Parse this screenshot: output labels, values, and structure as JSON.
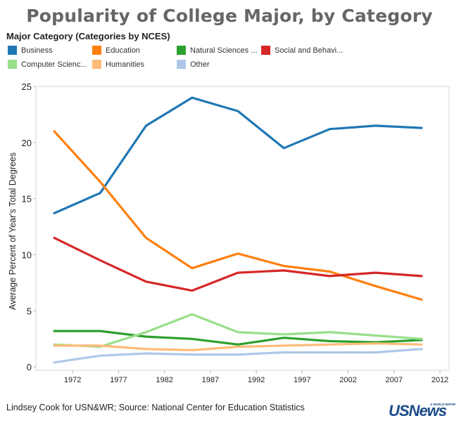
{
  "title": "Popularity of College Major, by Category",
  "legend": {
    "title": "Major Category (Categories by NCES)",
    "items": [
      {
        "label": "Business",
        "color": "#1f77b4"
      },
      {
        "label": "Education",
        "color": "#ff7f0e"
      },
      {
        "label": "Natural Sciences ...",
        "color": "#2ca02c"
      },
      {
        "label": "Social and Behavi...",
        "color": "#d62728"
      },
      {
        "label": "Computer Scienc...",
        "color": "#98df8a"
      },
      {
        "label": "Humanities",
        "color": "#ffbb78"
      },
      {
        "label": "Other",
        "color": "#aec7e8"
      }
    ]
  },
  "footer": "Lindsey Cook for USN&WR; Source: National Center for Education Statistics",
  "logo": {
    "text": "USNews",
    "subtext": "& WORLD REPORT",
    "color": "#1a4a8a"
  },
  "chart_data": {
    "type": "line",
    "title": "Popularity of College Major, by Category",
    "xlabel": "",
    "ylabel": "Average Percent of Year's Total Degrees",
    "x": [
      1970,
      1975,
      1980,
      1985,
      1990,
      1995,
      2000,
      2005,
      2010
    ],
    "xticks": [
      "1972",
      "1977",
      "1982",
      "1987",
      "1992",
      "1997",
      "2002",
      "2007",
      "2012"
    ],
    "xtick_values": [
      1972,
      1977,
      1982,
      1987,
      1992,
      1997,
      2002,
      2007,
      2012
    ],
    "xlim": [
      1968,
      2013
    ],
    "yticks": [
      "0",
      "5",
      "10",
      "15",
      "20",
      "25"
    ],
    "ytick_values": [
      0,
      5,
      10,
      15,
      20,
      25
    ],
    "ylim": [
      -0.3,
      25
    ],
    "grid": false,
    "series": [
      {
        "name": "Business",
        "color": "#1f77b4",
        "values": [
          13.7,
          15.5,
          21.5,
          24.0,
          22.8,
          19.5,
          21.2,
          21.5,
          21.3
        ]
      },
      {
        "name": "Education",
        "color": "#ff7f0e",
        "values": [
          21.0,
          16.5,
          11.5,
          8.8,
          10.1,
          9.0,
          8.5,
          7.2,
          6.0
        ]
      },
      {
        "name": "Natural Sciences ...",
        "color": "#2ca02c",
        "values": [
          3.2,
          3.2,
          2.7,
          2.5,
          2.0,
          2.6,
          2.3,
          2.2,
          2.4
        ]
      },
      {
        "name": "Social and Behavi...",
        "color": "#d62728",
        "values": [
          11.5,
          9.5,
          7.6,
          6.8,
          8.4,
          8.6,
          8.1,
          8.4,
          8.1
        ]
      },
      {
        "name": "Computer Scienc...",
        "color": "#98df8a",
        "values": [
          2.0,
          1.8,
          3.1,
          4.7,
          3.1,
          2.9,
          3.1,
          2.8,
          2.5
        ]
      },
      {
        "name": "Humanities",
        "color": "#ffbb78",
        "values": [
          1.9,
          1.9,
          1.6,
          1.5,
          1.8,
          1.9,
          2.0,
          2.1,
          2.0
        ]
      },
      {
        "name": "Other",
        "color": "#aec7e8",
        "values": [
          0.4,
          1.0,
          1.2,
          1.1,
          1.1,
          1.3,
          1.3,
          1.3,
          1.6
        ]
      }
    ]
  }
}
